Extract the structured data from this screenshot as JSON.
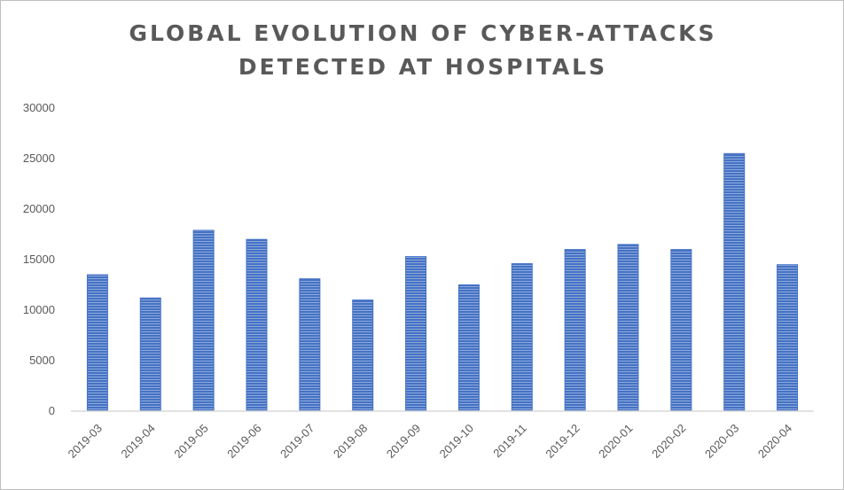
{
  "chart_data": {
    "type": "bar",
    "title_lines": [
      "GLOBAL EVOLUTION OF CYBER-ATTACKS",
      "DETECTED AT HOSPITALS"
    ],
    "xlabel": "",
    "ylabel": "",
    "categories": [
      "2019-03",
      "2019-04",
      "2019-05",
      "2019-06",
      "2019-07",
      "2019-08",
      "2019-09",
      "2019-10",
      "2019-11",
      "2019-12",
      "2020-01",
      "2020-02",
      "2020-03",
      "2020-04"
    ],
    "values": [
      13500,
      11200,
      17900,
      17000,
      13100,
      11000,
      15300,
      12500,
      14600,
      16000,
      16500,
      16000,
      25500,
      14500
    ],
    "ylim": [
      0,
      30000
    ],
    "yticks": [
      "0",
      "5000",
      "10000",
      "15000",
      "20000",
      "25000",
      "30000"
    ],
    "grid": false,
    "legend": "none",
    "colors": {
      "bar": "#4472c4",
      "bar_stripe": "#8ea9db",
      "axis": "#d9d9d9",
      "text": "#595959"
    }
  }
}
